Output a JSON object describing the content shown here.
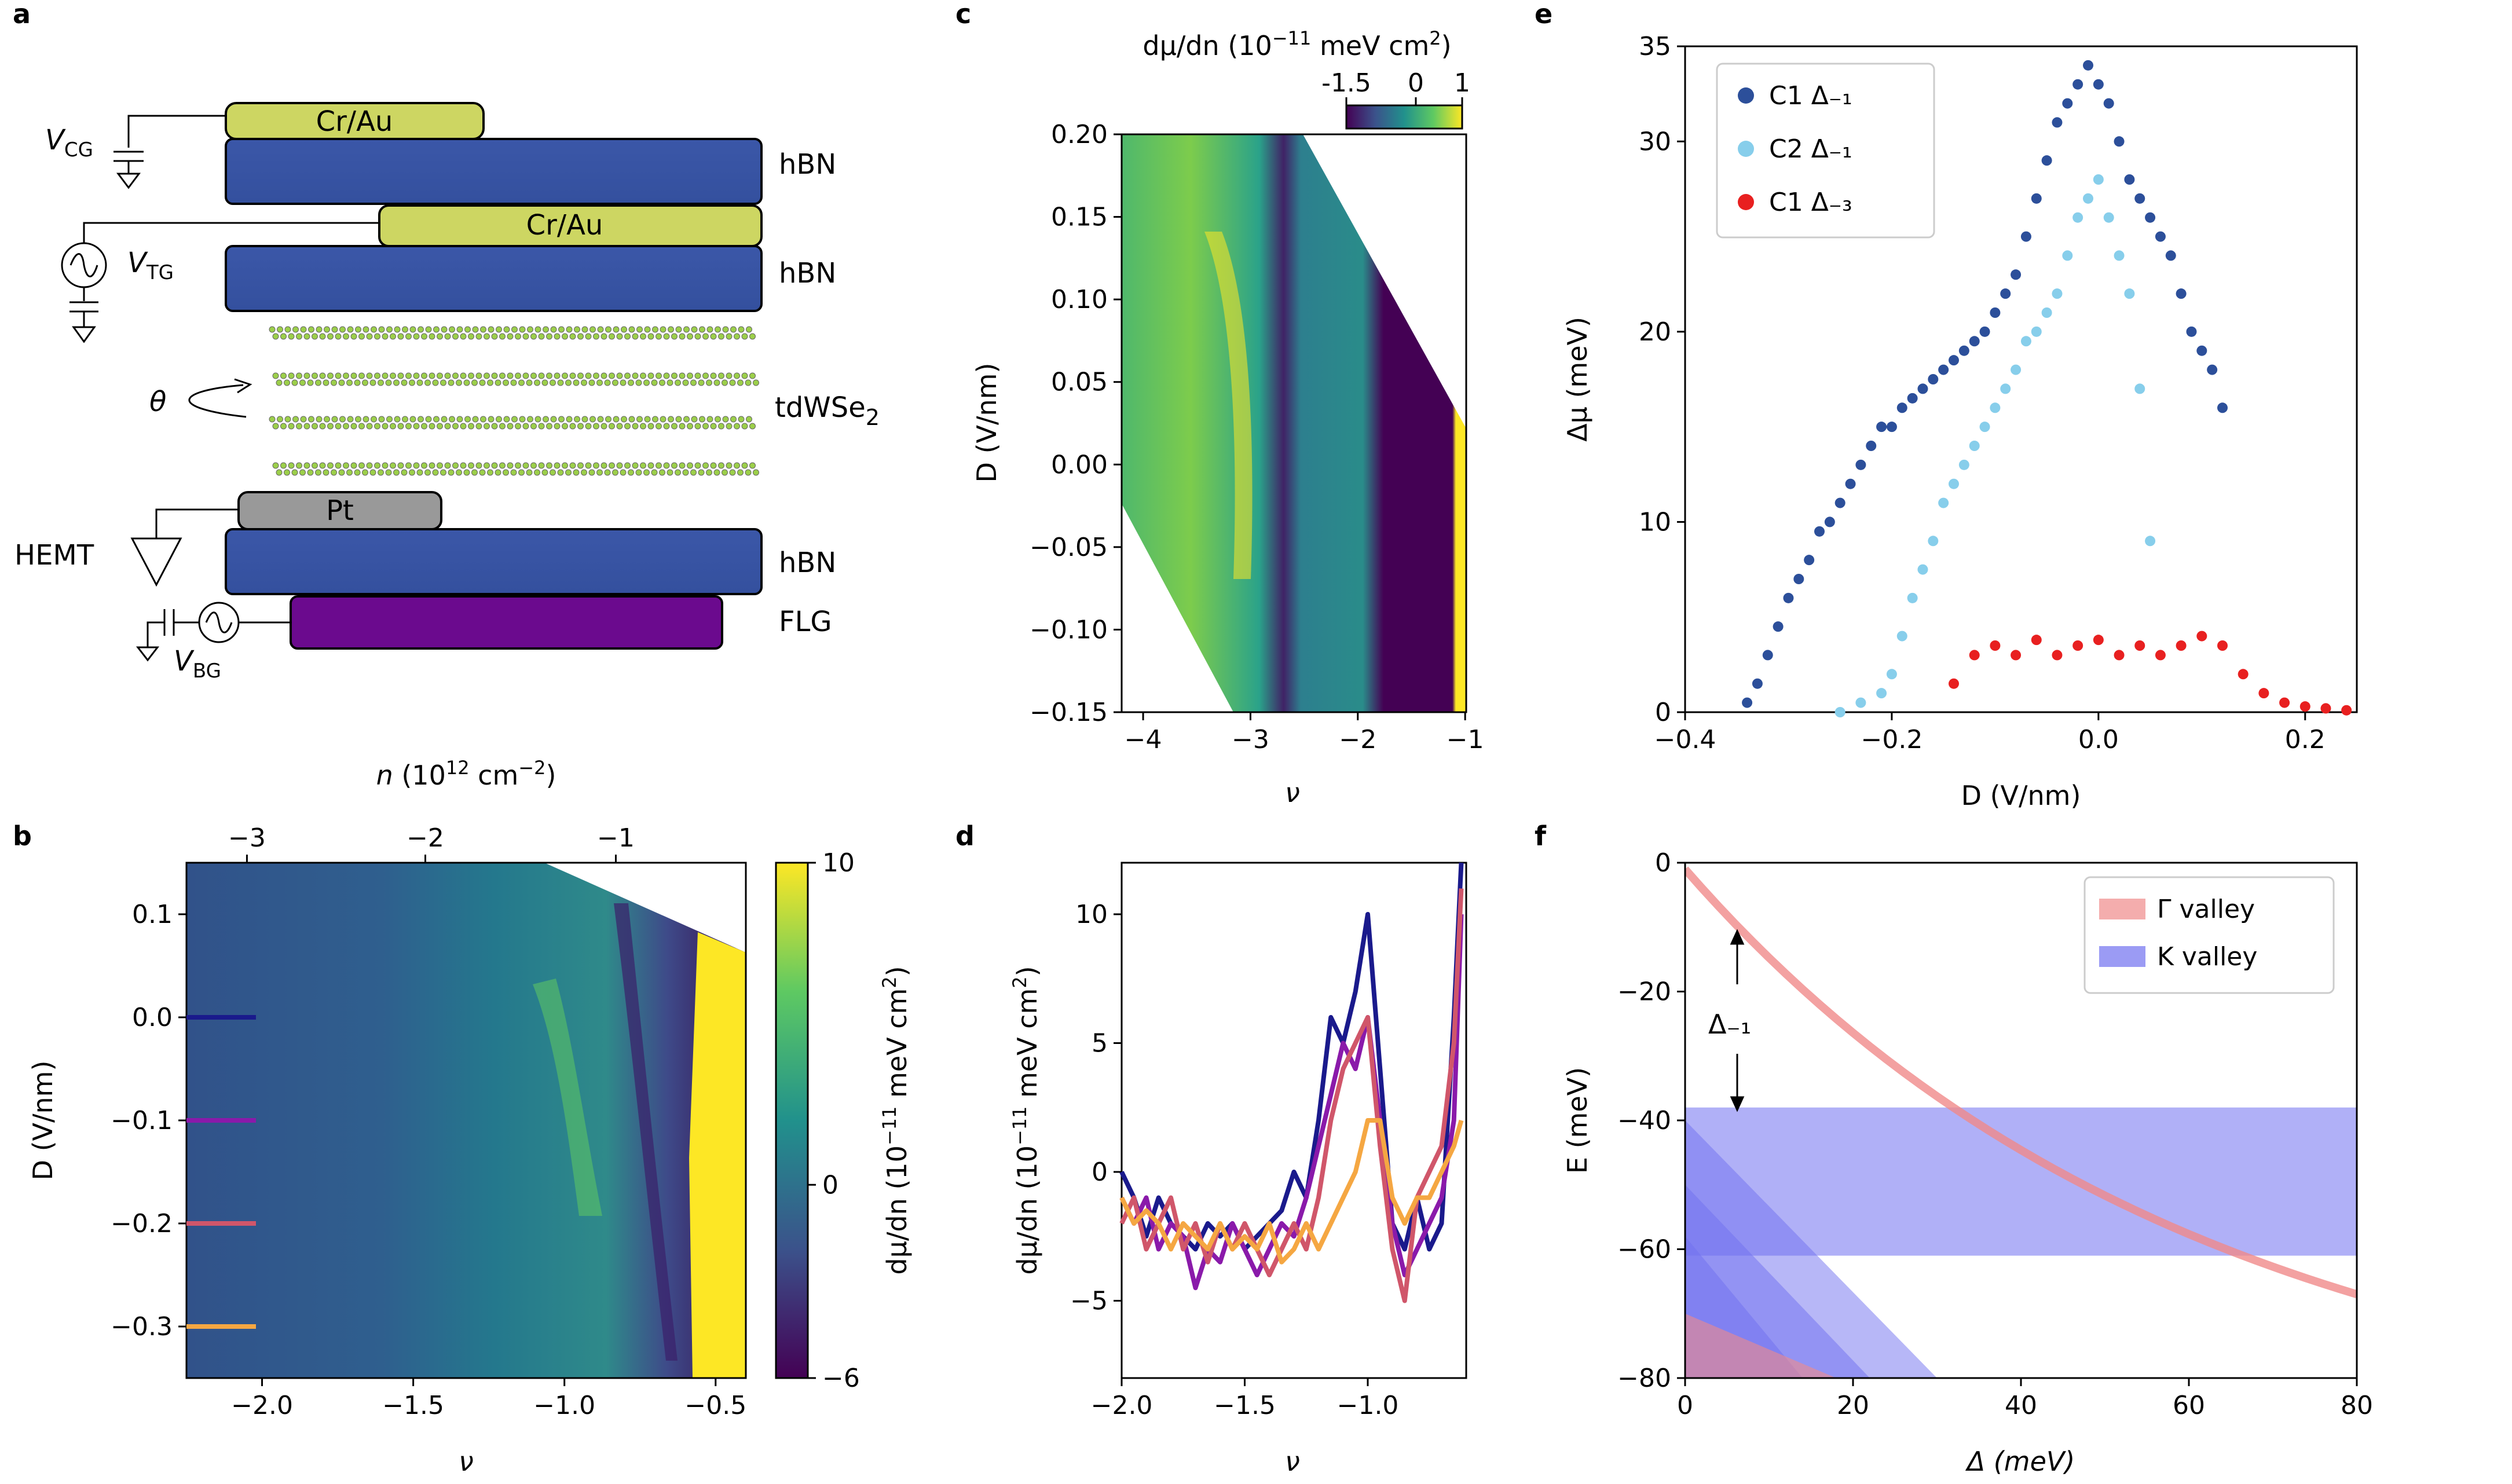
{
  "figure": {
    "panel_labels": [
      "a",
      "b",
      "c",
      "d",
      "e",
      "f"
    ]
  },
  "schematic": {
    "contact_top": "Cr/Au",
    "contact_mid": "Cr/Au",
    "contact_bottom": "Pt",
    "layer_hbn_1": "hBN",
    "layer_hbn_2": "hBN",
    "layer_hbn_3": "hBN",
    "layer_twist": "tdWSe",
    "layer_twist_sub": "2",
    "layer_flg": "FLG",
    "v_cg": "V",
    "v_cg_sub": "CG",
    "v_tg": "V",
    "v_tg_sub": "TG",
    "v_bg": "V",
    "v_bg_sub": "BG",
    "hemt": "HEMT",
    "theta": "θ",
    "colors": {
      "hbn": "#3a55a4",
      "contact": "#cdd662",
      "pt": "#999999",
      "flg": "#6b0a8e",
      "atom": "#9ccf4a"
    }
  },
  "chart_data": [
    {
      "panel": "b",
      "type": "heatmap",
      "xlabel": "ν",
      "ylabel": "D (V/nm)",
      "top_xlabel_prefix": "n",
      "top_xlabel_unit": "(10",
      "top_xlabel_exp": "12",
      "top_xlabel_tail": " cm",
      "top_xlabel_exp2": "−2",
      "top_xlabel_close": ")",
      "xlim": [
        -2.25,
        -0.4
      ],
      "ylim": [
        -0.35,
        0.15
      ],
      "xticks": [
        -2.0,
        -1.5,
        -1.0,
        -0.5
      ],
      "xtick_labels": [
        "−2.0",
        "−1.5",
        "−1.0",
        "−0.5"
      ],
      "yticks": [
        0.1,
        0.0,
        -0.1,
        -0.2,
        -0.3
      ],
      "ytick_labels": [
        "0.1",
        "0.0",
        "−0.1",
        "−0.2",
        "−0.3"
      ],
      "top_xticks": [
        -3,
        -2,
        -1
      ],
      "top_xtick_labels": [
        "−3",
        "−2",
        "−1"
      ],
      "top_xtick_nu_positions": [
        -2.05,
        -1.46,
        -0.83
      ],
      "colorbar": {
        "label": "dμ/dn (10",
        "label_exp": "−11",
        "label_tail": " meV cm",
        "label_exp2": "2",
        "label_close": ")",
        "range": [
          -6,
          10
        ],
        "ticks": [
          10,
          0,
          -6
        ],
        "tick_labels": [
          "10",
          "0",
          "−6"
        ]
      },
      "line_markers": [
        {
          "D": 0.0,
          "color": "#1a1a8c"
        },
        {
          "D": -0.1,
          "color": "#8a1aaa"
        },
        {
          "D": -0.2,
          "color": "#d0566a"
        },
        {
          "D": -0.3,
          "color": "#f5a742"
        }
      ]
    },
    {
      "panel": "c",
      "type": "heatmap",
      "xlabel": "ν",
      "ylabel": "D (V/nm)",
      "xlim": [
        -4.2,
        -0.99
      ],
      "ylim": [
        -0.15,
        0.2
      ],
      "xticks": [
        -4,
        -3,
        -2,
        -1
      ],
      "xtick_labels": [
        "−4",
        "−3",
        "−2",
        "−1"
      ],
      "yticks": [
        0.2,
        0.15,
        0.1,
        0.05,
        0.0,
        -0.05,
        -0.1,
        -0.15
      ],
      "ytick_labels": [
        "0.20",
        "0.15",
        "0.10",
        "0.05",
        "0.00",
        "−0.05",
        "−0.10",
        "−0.15"
      ],
      "colorbar": {
        "label": "dμ/dn (10",
        "label_exp": "−11",
        "label_tail": " meV cm",
        "label_exp2": "2",
        "label_close": ")",
        "range": [
          -1.5,
          1
        ],
        "ticks": [
          -1.5,
          0,
          1
        ],
        "tick_labels": [
          "-1.5",
          "0",
          "1"
        ]
      }
    },
    {
      "panel": "d",
      "type": "line",
      "xlabel": "ν",
      "ylabel": "dμ/dn (10",
      "ylabel_exp": "−11",
      "ylabel_tail": " meV cm",
      "ylabel_exp2": "2",
      "ylabel_close": ")",
      "xlim": [
        -2.0,
        -0.6
      ],
      "ylim": [
        -8,
        12
      ],
      "xticks": [
        -2.0,
        -1.5,
        -1.0
      ],
      "xtick_labels": [
        "−2.0",
        "−1.5",
        "−1.0"
      ],
      "yticks": [
        10,
        5,
        0,
        -5
      ],
      "ytick_labels": [
        "10",
        "5",
        "0",
        "−5"
      ],
      "series": [
        {
          "name": "D = 0.0",
          "color": "#1a1a8c",
          "x": [
            -2.0,
            -1.95,
            -1.9,
            -1.85,
            -1.8,
            -1.75,
            -1.7,
            -1.65,
            -1.6,
            -1.55,
            -1.5,
            -1.45,
            -1.4,
            -1.35,
            -1.3,
            -1.25,
            -1.2,
            -1.15,
            -1.1,
            -1.05,
            -1.0,
            -0.95,
            -0.9,
            -0.85,
            -0.8,
            -0.75,
            -0.7,
            -0.65,
            -0.62
          ],
          "y": [
            0,
            -1,
            -2.5,
            -1,
            -2,
            -2.5,
            -3,
            -2,
            -2.5,
            -2,
            -3,
            -2.5,
            -2,
            -1.5,
            0,
            -1,
            2,
            6,
            5,
            7,
            10,
            4,
            -2,
            -3,
            -1,
            -3,
            -2,
            6,
            12
          ]
        },
        {
          "name": "D = -0.1",
          "color": "#8a1aaa",
          "x": [
            -2.0,
            -1.95,
            -1.9,
            -1.85,
            -1.8,
            -1.75,
            -1.7,
            -1.65,
            -1.6,
            -1.55,
            -1.5,
            -1.45,
            -1.4,
            -1.35,
            -1.3,
            -1.25,
            -1.2,
            -1.15,
            -1.1,
            -1.05,
            -1.0,
            -0.95,
            -0.9,
            -0.85,
            -0.8,
            -0.75,
            -0.7,
            -0.65,
            -0.62
          ],
          "y": [
            -1,
            -2,
            -1,
            -3,
            -2,
            -2.5,
            -4.5,
            -3,
            -3.5,
            -2,
            -3,
            -4,
            -3,
            -2,
            -2.5,
            -1,
            1,
            3,
            5,
            4,
            6,
            2,
            -2,
            -4,
            -3,
            -2,
            -1,
            2,
            10
          ]
        },
        {
          "name": "D = -0.2",
          "color": "#d0566a",
          "x": [
            -2.0,
            -1.95,
            -1.9,
            -1.85,
            -1.8,
            -1.75,
            -1.7,
            -1.65,
            -1.6,
            -1.55,
            -1.5,
            -1.45,
            -1.4,
            -1.35,
            -1.3,
            -1.25,
            -1.2,
            -1.15,
            -1.1,
            -1.05,
            -1.0,
            -0.95,
            -0.9,
            -0.85,
            -0.8,
            -0.75,
            -0.7,
            -0.65,
            -0.62
          ],
          "y": [
            -2,
            -1,
            -3,
            -2,
            -1,
            -3,
            -2,
            -3.5,
            -2,
            -3,
            -2,
            -3,
            -4,
            -3,
            -2,
            -3,
            -1,
            2,
            4,
            5,
            6,
            1,
            -3,
            -5,
            -1,
            0,
            1,
            5,
            11
          ]
        },
        {
          "name": "D = -0.3",
          "color": "#f5a742",
          "x": [
            -2.0,
            -1.95,
            -1.9,
            -1.85,
            -1.8,
            -1.75,
            -1.7,
            -1.65,
            -1.6,
            -1.55,
            -1.5,
            -1.45,
            -1.4,
            -1.35,
            -1.3,
            -1.25,
            -1.2,
            -1.15,
            -1.1,
            -1.05,
            -1.0,
            -0.95,
            -0.9,
            -0.85,
            -0.8,
            -0.75,
            -0.7,
            -0.65,
            -0.62
          ],
          "y": [
            -1,
            -2,
            -1.5,
            -2,
            -3,
            -2,
            -2.5,
            -3,
            -2,
            -3,
            -2.5,
            -3,
            -2,
            -3.5,
            -3,
            -2,
            -3,
            -2,
            -1,
            0,
            2,
            2,
            -1,
            -2,
            -1,
            -1,
            0,
            1,
            2
          ]
        }
      ]
    },
    {
      "panel": "e",
      "type": "scatter",
      "xlabel": "D (V/nm)",
      "ylabel": "Δμ (meV)",
      "xlim": [
        -0.4,
        0.25
      ],
      "ylim": [
        0,
        35
      ],
      "xticks": [
        -0.4,
        -0.2,
        0.0,
        0.2
      ],
      "xtick_labels": [
        "−0.4",
        "−0.2",
        "0.0",
        "0.2"
      ],
      "yticks": [
        0,
        10,
        20,
        30
      ],
      "ytick_labels": [
        "0",
        "10",
        "20",
        "30"
      ],
      "extra_ytick": 35,
      "extra_ytick_label": "35",
      "legend": {
        "location": "top-left",
        "entries": [
          "C1 Δ₋₁",
          "C2 Δ₋₁",
          "C1 Δ₋₃"
        ]
      },
      "series": [
        {
          "name": "C1 Δ₋₁",
          "color": "#2c4f9a",
          "x": [
            -0.34,
            -0.33,
            -0.32,
            -0.31,
            -0.3,
            -0.29,
            -0.28,
            -0.27,
            -0.26,
            -0.25,
            -0.24,
            -0.23,
            -0.22,
            -0.21,
            -0.2,
            -0.19,
            -0.18,
            -0.17,
            -0.16,
            -0.15,
            -0.14,
            -0.13,
            -0.12,
            -0.11,
            -0.1,
            -0.09,
            -0.08,
            -0.07,
            -0.06,
            -0.05,
            -0.04,
            -0.03,
            -0.02,
            -0.01,
            0.0,
            0.01,
            0.02,
            0.03,
            0.04,
            0.05,
            0.06,
            0.07,
            0.08,
            0.09,
            0.1,
            0.11,
            0.12
          ],
          "y": [
            0.5,
            1.5,
            3,
            4.5,
            6,
            7,
            8,
            9.5,
            10,
            11,
            12,
            13,
            14,
            15,
            15,
            16,
            16.5,
            17,
            17.5,
            18,
            18.5,
            19,
            19.5,
            20,
            21,
            22,
            23,
            25,
            27,
            29,
            31,
            32,
            33,
            34,
            33,
            32,
            30,
            28,
            27,
            26,
            25,
            24,
            22,
            20,
            19,
            18,
            16
          ]
        },
        {
          "name": "C2 Δ₋₁",
          "color": "#87ceeb",
          "x": [
            -0.25,
            -0.23,
            -0.21,
            -0.2,
            -0.19,
            -0.18,
            -0.17,
            -0.16,
            -0.15,
            -0.14,
            -0.13,
            -0.12,
            -0.11,
            -0.1,
            -0.09,
            -0.08,
            -0.07,
            -0.06,
            -0.05,
            -0.04,
            -0.03,
            -0.02,
            -0.01,
            0.0,
            0.01,
            0.02,
            0.03,
            0.04,
            0.05
          ],
          "y": [
            0,
            0.5,
            1,
            2,
            4,
            6,
            7.5,
            9,
            11,
            12,
            13,
            14,
            15,
            16,
            17,
            18,
            19.5,
            20,
            21,
            22,
            24,
            26,
            27,
            28,
            26,
            24,
            22,
            17,
            9
          ]
        },
        {
          "name": "C1 Δ₋₃",
          "color": "#e82020",
          "x": [
            -0.14,
            -0.12,
            -0.1,
            -0.08,
            -0.06,
            -0.04,
            -0.02,
            0.0,
            0.02,
            0.04,
            0.06,
            0.08,
            0.1,
            0.12,
            0.14,
            0.16,
            0.18,
            0.2,
            0.22,
            0.24
          ],
          "y": [
            1.5,
            3,
            3.5,
            3,
            3.8,
            3,
            3.5,
            3.8,
            3,
            3.5,
            3,
            3.5,
            4,
            3.5,
            2,
            1,
            0.5,
            0.3,
            0.2,
            0.1
          ]
        }
      ]
    },
    {
      "panel": "f",
      "type": "line",
      "xlabel": "Δ (meV)",
      "ylabel": "E (meV)",
      "xlim": [
        0,
        80
      ],
      "ylim": [
        -80,
        0
      ],
      "xticks": [
        0,
        20,
        40,
        60,
        80
      ],
      "xtick_labels": [
        "0",
        "20",
        "40",
        "60",
        "80"
      ],
      "yticks": [
        0,
        -20,
        -40,
        -60,
        -80
      ],
      "ytick_labels": [
        "0",
        "−20",
        "−40",
        "−60",
        "−80"
      ],
      "legend": {
        "location": "top-right",
        "entries": [
          "Γ valley",
          "K valley"
        ]
      },
      "gamma_curve": {
        "color": "#f08a8a",
        "E0": -1,
        "E_at_80": -67
      },
      "k_band": {
        "color": "#7070f0",
        "E_top": -38,
        "E_bottom": -61
      },
      "annotation": "Δ₋₁"
    }
  ]
}
